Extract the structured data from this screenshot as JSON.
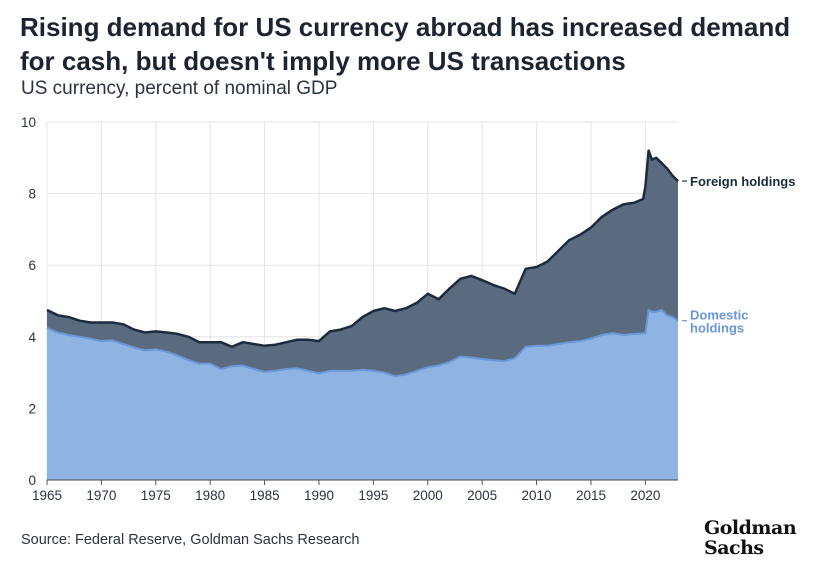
{
  "title": "Rising demand for US currency abroad has increased demand for cash, but doesn't imply more US transactions",
  "subtitle": "US currency, percent of nominal GDP",
  "source": "Source: Federal Reserve, Goldman Sachs Research",
  "logo": {
    "line1": "Goldman",
    "line2": "Sachs"
  },
  "colors": {
    "foreign": "#5b6b7f",
    "foreign_line": "#1c2b3d",
    "domestic": "#8fb3e3",
    "domestic_line": "#6a97d6",
    "grid": "#e4e4e4"
  },
  "chart_data": {
    "type": "area",
    "stacked": true,
    "x_ticks": [
      1965,
      1970,
      1975,
      1980,
      1985,
      1990,
      1995,
      2000,
      2005,
      2010,
      2015,
      2020
    ],
    "y_ticks": [
      0,
      2,
      4,
      6,
      8,
      10
    ],
    "xlim": [
      1965,
      2023
    ],
    "ylim": [
      0,
      10
    ],
    "grid": true,
    "series": [
      {
        "name": "Domestic holdings",
        "label": [
          "Domestic",
          "holdings"
        ],
        "points": [
          [
            1965,
            4.25
          ],
          [
            1966,
            4.12
          ],
          [
            1967,
            4.05
          ],
          [
            1968,
            4.0
          ],
          [
            1969,
            3.95
          ],
          [
            1970,
            3.88
          ],
          [
            1971,
            3.9
          ],
          [
            1972,
            3.8
          ],
          [
            1973,
            3.7
          ],
          [
            1974,
            3.62
          ],
          [
            1975,
            3.65
          ],
          [
            1976,
            3.58
          ],
          [
            1977,
            3.48
          ],
          [
            1978,
            3.35
          ],
          [
            1979,
            3.25
          ],
          [
            1980,
            3.25
          ],
          [
            1981,
            3.1
          ],
          [
            1982,
            3.18
          ],
          [
            1983,
            3.2
          ],
          [
            1984,
            3.1
          ],
          [
            1985,
            3.02
          ],
          [
            1986,
            3.05
          ],
          [
            1987,
            3.1
          ],
          [
            1988,
            3.12
          ],
          [
            1989,
            3.05
          ],
          [
            1990,
            2.98
          ],
          [
            1991,
            3.05
          ],
          [
            1992,
            3.05
          ],
          [
            1993,
            3.05
          ],
          [
            1994,
            3.08
          ],
          [
            1995,
            3.05
          ],
          [
            1996,
            3.0
          ],
          [
            1997,
            2.9
          ],
          [
            1998,
            2.95
          ],
          [
            1999,
            3.05
          ],
          [
            2000,
            3.15
          ],
          [
            2001,
            3.2
          ],
          [
            2002,
            3.3
          ],
          [
            2003,
            3.45
          ],
          [
            2004,
            3.42
          ],
          [
            2005,
            3.38
          ],
          [
            2006,
            3.35
          ],
          [
            2007,
            3.32
          ],
          [
            2008,
            3.4
          ],
          [
            2009,
            3.72
          ],
          [
            2010,
            3.75
          ],
          [
            2011,
            3.75
          ],
          [
            2012,
            3.8
          ],
          [
            2013,
            3.85
          ],
          [
            2014,
            3.88
          ],
          [
            2015,
            3.95
          ],
          [
            2016,
            4.05
          ],
          [
            2017,
            4.1
          ],
          [
            2018,
            4.05
          ],
          [
            2019,
            4.08
          ],
          [
            2020,
            4.1
          ],
          [
            2020.3,
            4.75
          ],
          [
            2020.6,
            4.7
          ],
          [
            2021,
            4.7
          ],
          [
            2021.5,
            4.75
          ],
          [
            2022,
            4.6
          ],
          [
            2022.5,
            4.55
          ],
          [
            2023,
            4.45
          ]
        ]
      },
      {
        "name": "Foreign holdings",
        "label": [
          "Foreign holdings"
        ],
        "points": [
          [
            1965,
            4.75
          ],
          [
            1966,
            4.6
          ],
          [
            1967,
            4.55
          ],
          [
            1968,
            4.45
          ],
          [
            1969,
            4.4
          ],
          [
            1970,
            4.4
          ],
          [
            1971,
            4.4
          ],
          [
            1972,
            4.35
          ],
          [
            1973,
            4.2
          ],
          [
            1974,
            4.12
          ],
          [
            1975,
            4.15
          ],
          [
            1976,
            4.12
          ],
          [
            1977,
            4.08
          ],
          [
            1978,
            4.0
          ],
          [
            1979,
            3.85
          ],
          [
            1980,
            3.85
          ],
          [
            1981,
            3.85
          ],
          [
            1982,
            3.72
          ],
          [
            1983,
            3.85
          ],
          [
            1984,
            3.8
          ],
          [
            1985,
            3.75
          ],
          [
            1986,
            3.78
          ],
          [
            1987,
            3.85
          ],
          [
            1988,
            3.92
          ],
          [
            1989,
            3.92
          ],
          [
            1990,
            3.88
          ],
          [
            1991,
            4.15
          ],
          [
            1992,
            4.2
          ],
          [
            1993,
            4.3
          ],
          [
            1994,
            4.55
          ],
          [
            1995,
            4.72
          ],
          [
            1996,
            4.8
          ],
          [
            1997,
            4.72
          ],
          [
            1998,
            4.8
          ],
          [
            1999,
            4.95
          ],
          [
            2000,
            5.2
          ],
          [
            2001,
            5.05
          ],
          [
            2002,
            5.35
          ],
          [
            2003,
            5.62
          ],
          [
            2004,
            5.7
          ],
          [
            2005,
            5.58
          ],
          [
            2006,
            5.45
          ],
          [
            2007,
            5.35
          ],
          [
            2008,
            5.2
          ],
          [
            2009,
            5.9
          ],
          [
            2010,
            5.95
          ],
          [
            2011,
            6.1
          ],
          [
            2012,
            6.4
          ],
          [
            2013,
            6.7
          ],
          [
            2014,
            6.85
          ],
          [
            2015,
            7.05
          ],
          [
            2016,
            7.35
          ],
          [
            2017,
            7.55
          ],
          [
            2018,
            7.7
          ],
          [
            2019,
            7.75
          ],
          [
            2019.8,
            7.85
          ],
          [
            2020,
            8.2
          ],
          [
            2020.3,
            9.2
          ],
          [
            2020.6,
            8.95
          ],
          [
            2021,
            9.0
          ],
          [
            2021.5,
            8.85
          ],
          [
            2022,
            8.7
          ],
          [
            2022.5,
            8.5
          ],
          [
            2023,
            8.35
          ]
        ]
      }
    ]
  }
}
